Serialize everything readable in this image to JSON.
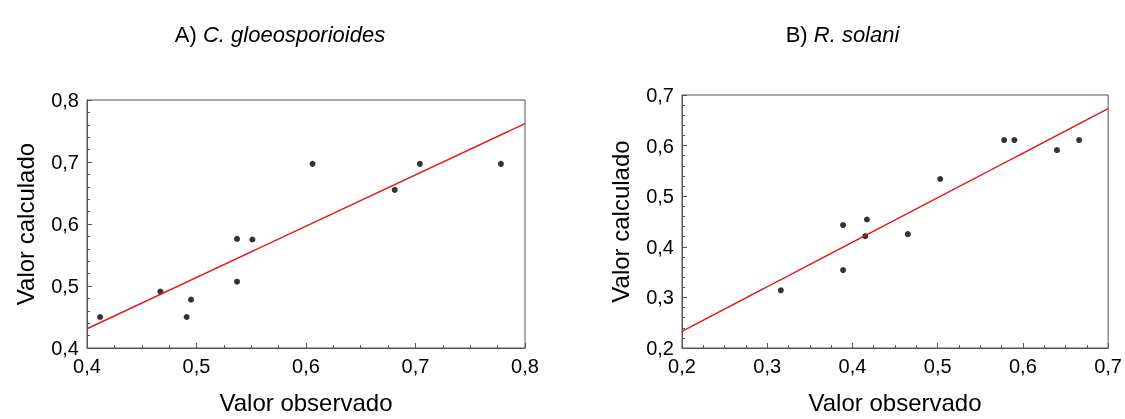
{
  "chart_data": [
    {
      "type": "scatter",
      "title": "A) C. gloeosporioides",
      "xlabel": "Valor observado",
      "ylabel": "Valor calculado",
      "xlim": [
        0.4,
        0.8
      ],
      "xticks": [
        {
          "value": 0.4,
          "label": "0,4"
        },
        {
          "value": 0.5,
          "label": "0,5"
        },
        {
          "value": 0.6,
          "label": "0,6"
        },
        {
          "value": 0.7,
          "label": "0,7"
        },
        {
          "value": 0.8,
          "label": "0,8"
        }
      ],
      "ylim": [
        0.4,
        0.8
      ],
      "yticks": [
        {
          "value": 0.4,
          "label": "0,4"
        },
        {
          "value": 0.5,
          "label": "0,5"
        },
        {
          "value": 0.6,
          "label": "0,6"
        },
        {
          "value": 0.7,
          "label": "0,7"
        },
        {
          "value": 0.8,
          "label": "0,8"
        }
      ],
      "grid": false,
      "series": [
        {
          "marker": "circle",
          "color": "#000000",
          "x": [
            0.412,
            0.467,
            0.491,
            0.495,
            0.537,
            0.537,
            0.551,
            0.606,
            0.681,
            0.704,
            0.778
          ],
          "values": [
            0.45,
            0.491,
            0.45,
            0.478,
            0.576,
            0.507,
            0.575,
            0.697,
            0.655,
            0.697,
            0.697
          ]
        },
        {
          "type": "line",
          "marker": "none",
          "color": "#e31a1c",
          "x": [
            0.4,
            0.8
          ],
          "values": [
            0.431,
            0.762
          ]
        }
      ]
    },
    {
      "type": "scatter",
      "title": "B) R. solani",
      "xlabel": "Valor observado",
      "ylabel": "Valor calculado",
      "xlim": [
        0.2,
        0.7
      ],
      "xticks": [
        {
          "value": 0.2,
          "label": "0,2"
        },
        {
          "value": 0.3,
          "label": "0,3"
        },
        {
          "value": 0.4,
          "label": "0,4"
        },
        {
          "value": 0.5,
          "label": "0,5"
        },
        {
          "value": 0.6,
          "label": "0,6"
        },
        {
          "value": 0.7,
          "label": "0,7"
        }
      ],
      "ylim": [
        0.2,
        0.7
      ],
      "yticks": [
        {
          "value": 0.2,
          "label": "0,2"
        },
        {
          "value": 0.3,
          "label": "0,3"
        },
        {
          "value": 0.4,
          "label": "0,4"
        },
        {
          "value": 0.5,
          "label": "0,5"
        },
        {
          "value": 0.6,
          "label": "0,6"
        },
        {
          "value": 0.7,
          "label": "0,7"
        }
      ],
      "grid": false,
      "series": [
        {
          "marker": "circle",
          "color": "#000000",
          "x": [
            0.316,
            0.389,
            0.389,
            0.415,
            0.417,
            0.465,
            0.503,
            0.578,
            0.59,
            0.64,
            0.666
          ],
          "values": [
            0.314,
            0.443,
            0.354,
            0.421,
            0.454,
            0.425,
            0.534,
            0.611,
            0.611,
            0.591,
            0.611
          ]
        },
        {
          "type": "line",
          "marker": "none",
          "color": "#e31a1c",
          "x": [
            0.2,
            0.7
          ],
          "values": [
            0.233,
            0.673
          ]
        }
      ]
    }
  ]
}
